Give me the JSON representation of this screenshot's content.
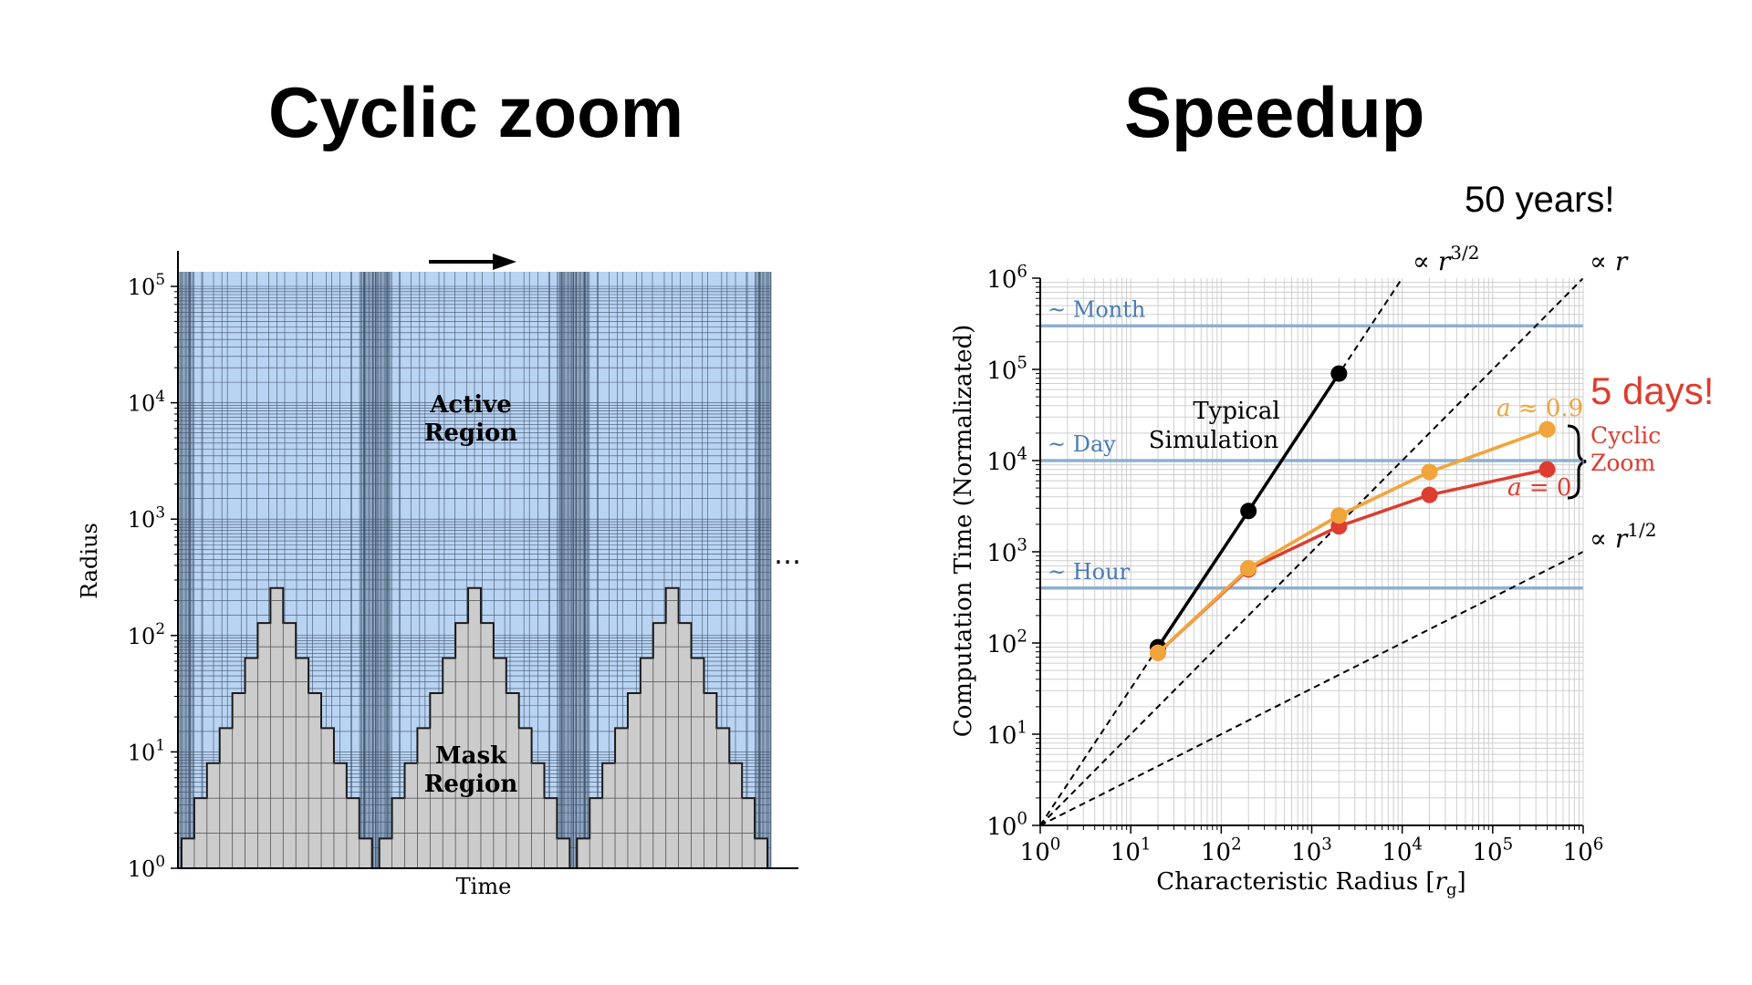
{
  "slide": {
    "left_title": "Cyclic zoom",
    "right_title": "Speedup",
    "callout_years": "50 years!",
    "callout_days": "5 days!",
    "callout_days_color": "#dc3d2f"
  },
  "chart_data": [
    {
      "type": "area",
      "description_label": "Cyclic zoom schematic",
      "xlabel": "Time",
      "ylabel": "Radius",
      "yscale": "log",
      "ylim": [
        1,
        130000
      ],
      "ytick_values": [
        1,
        10,
        100,
        1000,
        10000,
        100000
      ],
      "ytick_labels": [
        {
          "base": "10",
          "exp": "0"
        },
        {
          "base": "10",
          "exp": "1"
        },
        {
          "base": "10",
          "exp": "2"
        },
        {
          "base": "10",
          "exp": "3"
        },
        {
          "base": "10",
          "exp": "4"
        },
        {
          "base": "10",
          "exp": "5"
        }
      ],
      "region_labels": {
        "active": [
          "Active",
          "Region"
        ],
        "mask": [
          "Mask",
          "Region"
        ]
      },
      "continuation": "…",
      "mask_profile_one_cycle": [
        1.8,
        4,
        8,
        16,
        32,
        64,
        128,
        256,
        128,
        64,
        32,
        16,
        8,
        4,
        1.8
      ],
      "cycles": 3,
      "colors": {
        "active": "#b9d3f2",
        "mask": "#cccccc",
        "grid": "#2a3c52"
      }
    },
    {
      "type": "line",
      "xlabel": "Characteristic Radius [r_g]",
      "xlabel_main": "Characteristic Radius [",
      "xlabel_var": "r",
      "xlabel_sub": "g",
      "xlabel_end": "]",
      "ylabel": "Computation Time (Normalizated)",
      "xscale": "log",
      "yscale": "log",
      "xlim": [
        1,
        1000000
      ],
      "ylim": [
        1,
        1000000
      ],
      "tick_exponents": [
        "0",
        "1",
        "2",
        "3",
        "4",
        "5",
        "6"
      ],
      "tick_base": "10",
      "grid": true,
      "hlines": [
        {
          "name": "~ Month",
          "label": "~ Month",
          "y": 300000,
          "color": "#4a7bb5"
        },
        {
          "name": "~ Day",
          "label": "~ Day",
          "y": 10000,
          "color": "#4a7bb5"
        },
        {
          "name": "~ Hour",
          "label": "~ Hour",
          "y": 400,
          "color": "#4a7bb5"
        }
      ],
      "reference_lines": [
        {
          "label": "∝ r",
          "prefix": "∝",
          "var": "r",
          "exp": "3/2",
          "power": 1.5
        },
        {
          "label": "∝ r",
          "prefix": "∝",
          "var": "r",
          "exp": "",
          "power": 1
        },
        {
          "label": "∝ r",
          "prefix": "∝",
          "var": "r",
          "exp": "1/2",
          "power": 0.5
        }
      ],
      "series": [
        {
          "name": "Typical Simulation",
          "label_lines": [
            "Typical",
            "Simulation"
          ],
          "color": "#000000",
          "x": [
            20,
            200,
            2000
          ],
          "y": [
            90,
            2800,
            90000
          ]
        },
        {
          "name": "a ≈ 0.9",
          "label_var": "a",
          "label_rest": " ≈ 0.9",
          "color": "#f0a53c",
          "x": [
            20,
            200,
            2000,
            20000,
            400000
          ],
          "y": [
            78,
            660,
            2500,
            7500,
            22000
          ]
        },
        {
          "name": "a = 0",
          "label_var": "a",
          "label_rest": " = 0",
          "color": "#dc3d2f",
          "x": [
            20,
            200,
            2000,
            20000,
            400000
          ],
          "y": [
            78,
            640,
            1900,
            4200,
            8000
          ]
        }
      ],
      "bracket_label": [
        "Cyclic",
        "Zoom"
      ],
      "bracket_color": "#dc3d2f"
    }
  ]
}
